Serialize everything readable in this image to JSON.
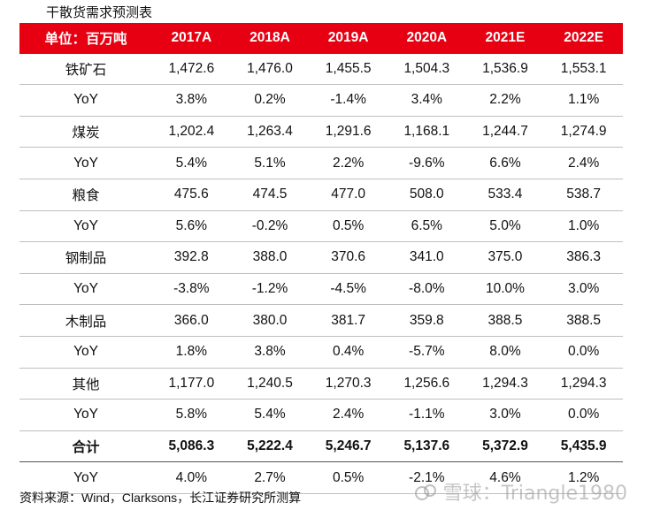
{
  "title": "干散货需求预测表",
  "header": [
    "单位：百万吨",
    "2017A",
    "2018A",
    "2019A",
    "2020A",
    "2021E",
    "2022E"
  ],
  "rows": [
    {
      "label": "铁矿石",
      "values": [
        "1,472.6",
        "1,476.0",
        "1,455.5",
        "1,504.3",
        "1,536.9",
        "1,553.1"
      ]
    },
    {
      "label": "YoY",
      "values": [
        "3.8%",
        "0.2%",
        "-1.4%",
        "3.4%",
        "2.2%",
        "1.1%"
      ]
    },
    {
      "label": "煤炭",
      "values": [
        "1,202.4",
        "1,263.4",
        "1,291.6",
        "1,168.1",
        "1,244.7",
        "1,274.9"
      ]
    },
    {
      "label": "YoY",
      "values": [
        "5.4%",
        "5.1%",
        "2.2%",
        "-9.6%",
        "6.6%",
        "2.4%"
      ]
    },
    {
      "label": "粮食",
      "values": [
        "475.6",
        "474.5",
        "477.0",
        "508.0",
        "533.4",
        "538.7"
      ]
    },
    {
      "label": "YoY",
      "values": [
        "5.6%",
        "-0.2%",
        "0.5%",
        "6.5%",
        "5.0%",
        "1.0%"
      ]
    },
    {
      "label": "钢制品",
      "values": [
        "392.8",
        "388.0",
        "370.6",
        "341.0",
        "375.0",
        "386.3"
      ]
    },
    {
      "label": "YoY",
      "values": [
        "-3.8%",
        "-1.2%",
        "-4.5%",
        "-8.0%",
        "10.0%",
        "3.0%"
      ]
    },
    {
      "label": "木制品",
      "values": [
        "366.0",
        "380.0",
        "381.7",
        "359.8",
        "388.5",
        "388.5"
      ]
    },
    {
      "label": "YoY",
      "values": [
        "1.8%",
        "3.8%",
        "0.4%",
        "-5.7%",
        "8.0%",
        "0.0%"
      ]
    },
    {
      "label": "其他",
      "values": [
        "1,177.0",
        "1,240.5",
        "1,270.3",
        "1,256.6",
        "1,294.3",
        "1,294.3"
      ]
    },
    {
      "label": "YoY",
      "values": [
        "5.8%",
        "5.4%",
        "2.4%",
        "-1.1%",
        "3.0%",
        "0.0%"
      ]
    },
    {
      "label": "合计",
      "values": [
        "5,086.3",
        "5,222.4",
        "5,246.7",
        "5,137.6",
        "5,372.9",
        "5,435.9"
      ]
    },
    {
      "label": "YoY",
      "values": [
        "4.0%",
        "2.7%",
        "0.5%",
        "-2.1%",
        "4.6%",
        "1.2%"
      ]
    }
  ],
  "source": "资料来源：Wind，Clarksons，长江证券研究所测算",
  "watermark": "雪球：Triangle1980",
  "colors": {
    "header_bg": "#e60012",
    "header_text": "#ffffff"
  }
}
